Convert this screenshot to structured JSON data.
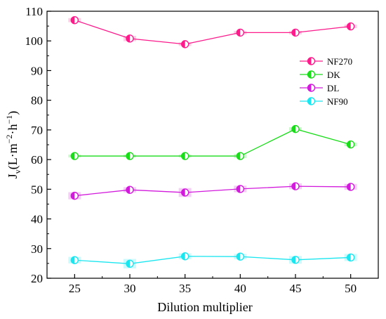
{
  "chart_data": {
    "type": "line",
    "xlabel": "Dilution multiplier",
    "ylabel": {
      "main": "J",
      "sub": "v",
      "unit_open": "(L·m",
      "unit_exp1": "−2",
      "unit_mid": "·h",
      "unit_exp2": "−1",
      "unit_close": ")"
    },
    "x": [
      25,
      30,
      35,
      40,
      45,
      50
    ],
    "xlim": [
      22.5,
      52.5
    ],
    "ylim": [
      20,
      110
    ],
    "xticks": [
      "25",
      "30",
      "35",
      "40",
      "45",
      "50"
    ],
    "yticks": [
      "20",
      "30",
      "40",
      "50",
      "60",
      "70",
      "80",
      "90",
      "100",
      "110"
    ],
    "grid": false,
    "legend_position": "top-right",
    "marker": "half-filled circle",
    "series": [
      {
        "name": "NF270",
        "color": "#ff1a8c",
        "values": [
          107,
          100.8,
          98.9,
          102.8,
          102.8,
          104.9
        ],
        "errors": [
          0.7,
          0.9,
          0.6,
          0.6,
          0.6,
          0.6
        ]
      },
      {
        "name": "DK",
        "color": "#1adc1a",
        "values": [
          61.2,
          61.2,
          61.2,
          61.2,
          70.3,
          65.1
        ],
        "errors": [
          0.5,
          0.5,
          0.5,
          0.7,
          0.6,
          0.6
        ]
      },
      {
        "name": "DL",
        "color": "#d21adc",
        "values": [
          47.8,
          49.8,
          48.9,
          50.1,
          51,
          50.8
        ],
        "errors": [
          1.2,
          0.9,
          1.5,
          1.1,
          1.0,
          1.0
        ]
      },
      {
        "name": "NF90",
        "color": "#1ae6f0",
        "values": [
          26.1,
          24.9,
          27.4,
          27.3,
          26.2,
          27
        ],
        "errors": [
          1.1,
          1.6,
          1.0,
          0.9,
          1.3,
          1.2
        ]
      }
    ]
  }
}
